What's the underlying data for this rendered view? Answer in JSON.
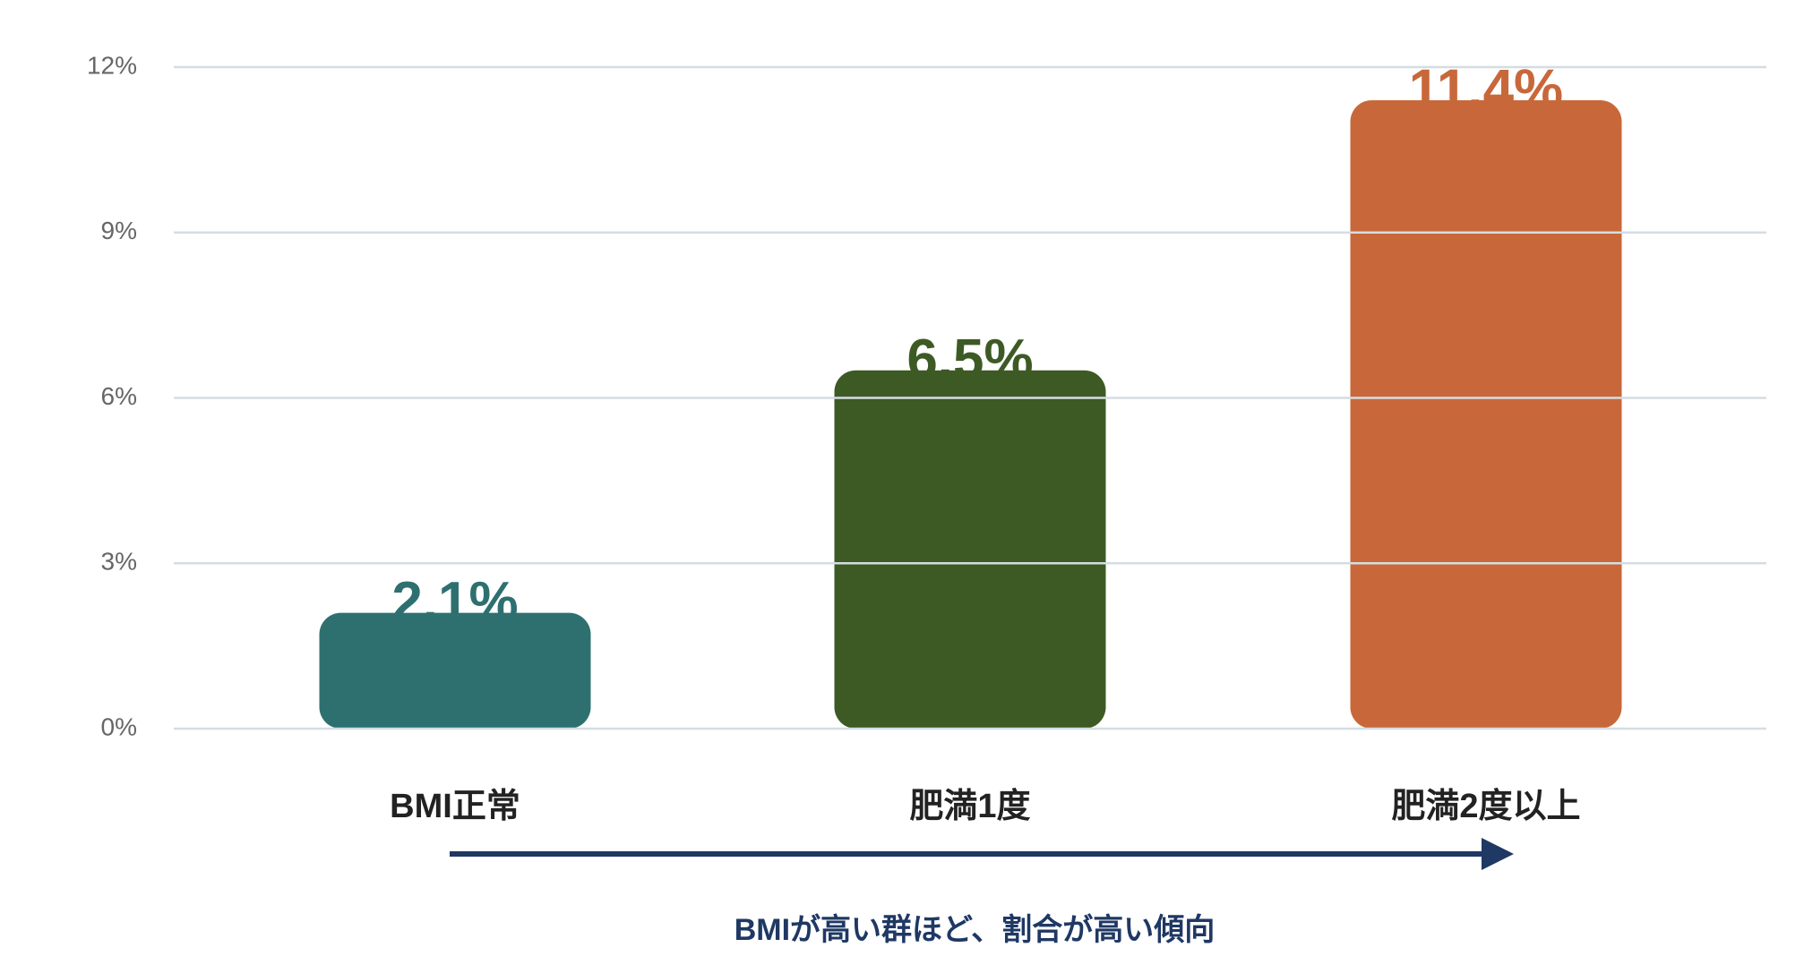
{
  "chart_data": {
    "type": "bar",
    "categories": [
      "BMI正常",
      "肥満1度",
      "肥満2度以上"
    ],
    "values": [
      2.1,
      6.5,
      11.4
    ],
    "value_labels": [
      "2.1%",
      "6.5%",
      "11.4%"
    ],
    "colors": [
      "#2e7070",
      "#3d5a24",
      "#c8683a"
    ],
    "ylim": [
      0,
      12
    ],
    "yticks": [
      {
        "value": 0,
        "label": "0%"
      },
      {
        "value": 3,
        "label": "3%"
      },
      {
        "value": 6,
        "label": "6%"
      },
      {
        "value": 9,
        "label": "9%"
      },
      {
        "value": 12,
        "label": "12%"
      }
    ],
    "grid": true,
    "annotation": "BMIが高い群ほど、割合が高い傾向"
  }
}
